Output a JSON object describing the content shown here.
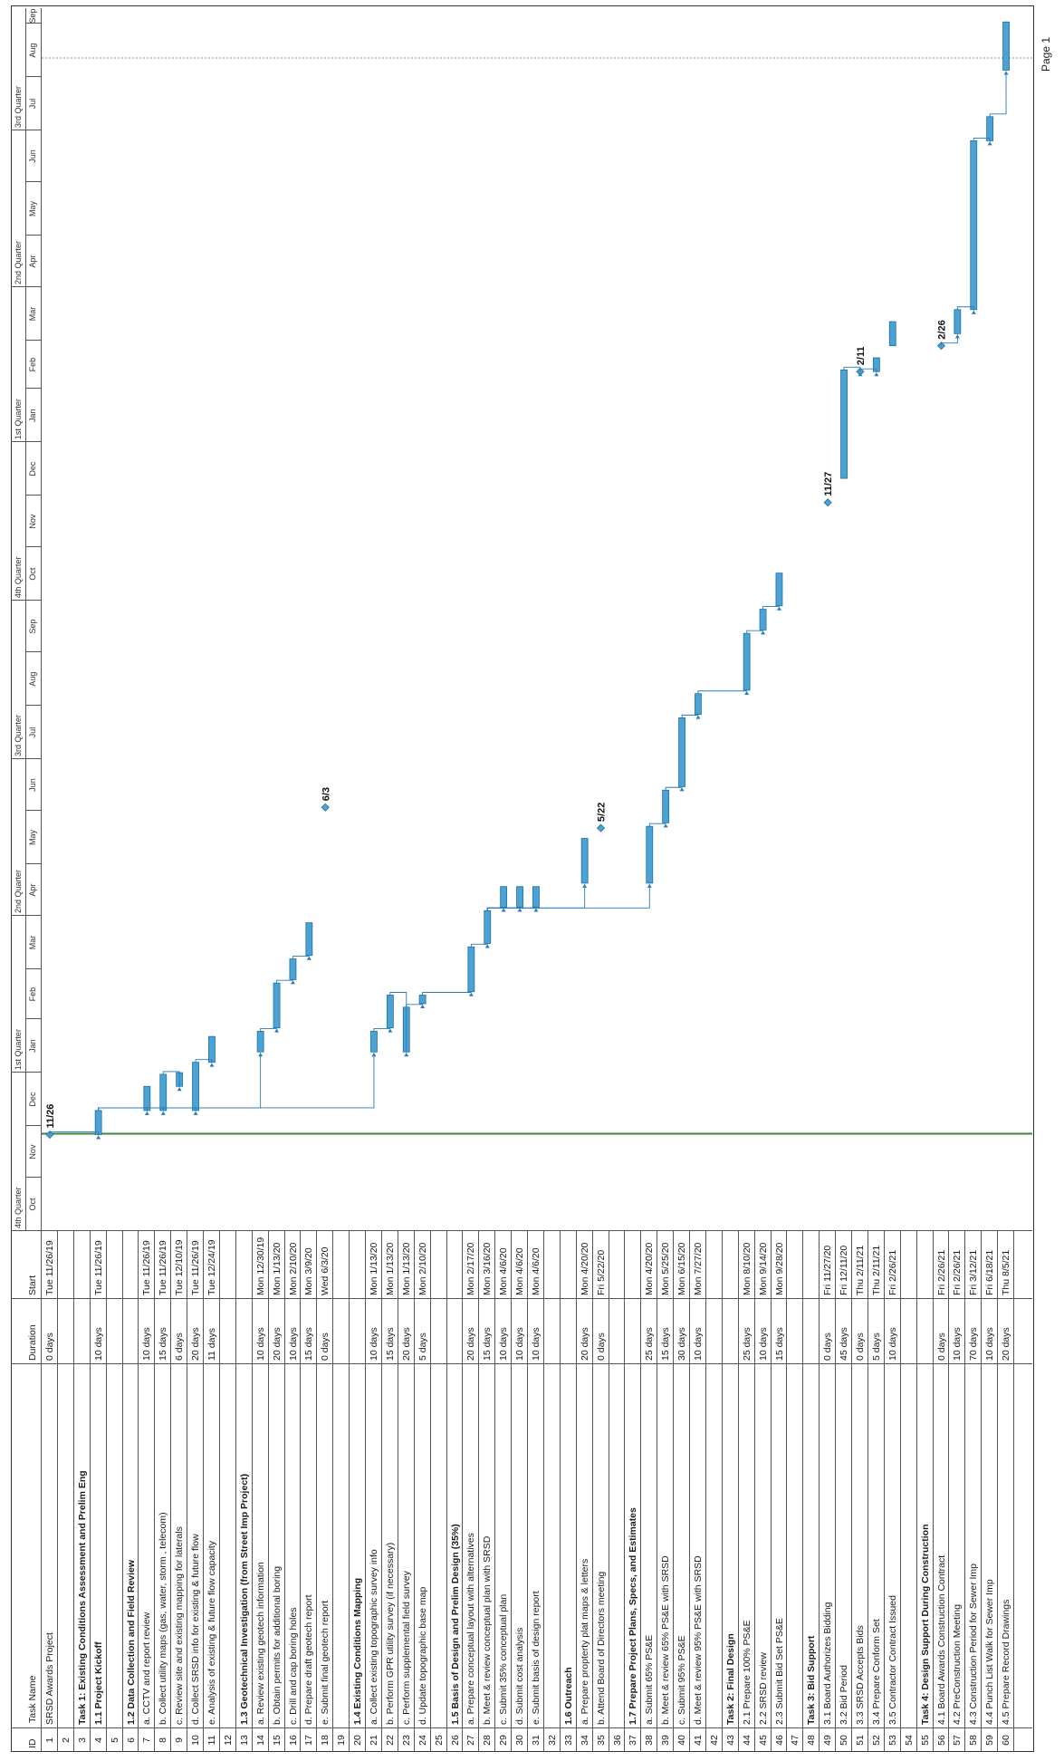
{
  "columns": {
    "id": "ID",
    "name": "Task Name",
    "duration": "Duration",
    "start": "Start"
  },
  "timescale": {
    "quarters": [
      {
        "label": "4th Quarter",
        "start": "2019-10-01"
      },
      {
        "label": "1st Quarter",
        "start": "2020-01-01"
      },
      {
        "label": "2nd Quarter",
        "start": "2020-04-01"
      },
      {
        "label": "3rd Quarter",
        "start": "2020-07-01"
      },
      {
        "label": "4th Quarter",
        "start": "2020-10-01"
      },
      {
        "label": "1st Quarter",
        "start": "2021-01-01"
      },
      {
        "label": "2nd Quarter",
        "start": "2021-04-01"
      },
      {
        "label": "3rd Quarter",
        "start": "2021-07-01"
      }
    ],
    "months": [
      {
        "label": "Oct",
        "start": "2019-10-01"
      },
      {
        "label": "Nov",
        "start": "2019-11-01"
      },
      {
        "label": "Dec",
        "start": "2019-12-01"
      },
      {
        "label": "Jan",
        "start": "2020-01-01"
      },
      {
        "label": "Feb",
        "start": "2020-02-01"
      },
      {
        "label": "Mar",
        "start": "2020-03-01"
      },
      {
        "label": "Apr",
        "start": "2020-04-01"
      },
      {
        "label": "May",
        "start": "2020-05-01"
      },
      {
        "label": "Jun",
        "start": "2020-06-01"
      },
      {
        "label": "Jul",
        "start": "2020-07-01"
      },
      {
        "label": "Aug",
        "start": "2020-08-01"
      },
      {
        "label": "Sep",
        "start": "2020-09-01"
      },
      {
        "label": "Oct",
        "start": "2020-10-01"
      },
      {
        "label": "Nov",
        "start": "2020-11-01"
      },
      {
        "label": "Dec",
        "start": "2020-12-01"
      },
      {
        "label": "Jan",
        "start": "2021-01-01"
      },
      {
        "label": "Feb",
        "start": "2021-02-01"
      },
      {
        "label": "Mar",
        "start": "2021-03-01"
      },
      {
        "label": "Apr",
        "start": "2021-04-01"
      },
      {
        "label": "May",
        "start": "2021-05-01"
      },
      {
        "label": "Jun",
        "start": "2021-06-01"
      },
      {
        "label": "Jul",
        "start": "2021-07-01"
      },
      {
        "label": "Aug",
        "start": "2021-08-01"
      },
      {
        "label": "Sep",
        "start": "2021-09-01"
      }
    ]
  },
  "colors": {
    "bar": "#4aa3d4",
    "bar_border": "#1f6fa0",
    "link": "#2a7ab8",
    "today_line": "#3a8a3a"
  },
  "page_label": "Page 1",
  "tasks": [
    {
      "id": "1",
      "name": "SRSD Awards Project",
      "duration": "0 days",
      "start": "Tue 11/26/19",
      "bold": false,
      "bar": {
        "type": "milestone",
        "date": "2019-11-26",
        "label": "11/26"
      }
    },
    {
      "id": "2",
      "name": "",
      "duration": "",
      "start": "",
      "bold": false,
      "bar": null
    },
    {
      "id": "3",
      "name": "Task 1:  Existing Conditions Assessment and Prelim Eng",
      "duration": "",
      "start": "",
      "bold": true,
      "bar": null
    },
    {
      "id": "4",
      "name": "1.1 Project Kickoff",
      "duration": "10 days",
      "start": "Tue 11/26/19",
      "bold": true,
      "bar": {
        "type": "task",
        "start": "2019-11-26",
        "end": "2019-12-09"
      }
    },
    {
      "id": "5",
      "name": "",
      "duration": "",
      "start": "",
      "bold": false,
      "bar": null
    },
    {
      "id": "6",
      "name": "1.2 Data Collection and Field Review",
      "duration": "",
      "start": "",
      "bold": true,
      "bar": null
    },
    {
      "id": "7",
      "name": "a. CCTV and report review",
      "duration": "10 days",
      "start": "Tue 11/26/19",
      "bold": false,
      "bar": {
        "type": "task",
        "start": "2019-12-10",
        "end": "2019-12-23"
      }
    },
    {
      "id": "8",
      "name": "b. Collect utility maps (gas, water, storm , telecom)",
      "duration": "15 days",
      "start": "Tue 11/26/19",
      "bold": false,
      "bar": {
        "type": "task",
        "start": "2019-12-10",
        "end": "2019-12-30"
      }
    },
    {
      "id": "9",
      "name": "c. Review site and existing mapping for laterals",
      "duration": "6 days",
      "start": "Tue 12/10/19",
      "bold": false,
      "bar": {
        "type": "task",
        "start": "2019-12-24",
        "end": "2019-12-31"
      }
    },
    {
      "id": "10",
      "name": "d. Collect SRSD info for existing & future flow",
      "duration": "20 days",
      "start": "Tue 11/26/19",
      "bold": false,
      "bar": {
        "type": "task",
        "start": "2019-12-10",
        "end": "2020-01-06"
      }
    },
    {
      "id": "11",
      "name": "e. Analysis of existing & future flow capacity",
      "duration": "11 days",
      "start": "Tue 12/24/19",
      "bold": false,
      "bar": {
        "type": "task",
        "start": "2020-01-07",
        "end": "2020-01-21"
      }
    },
    {
      "id": "12",
      "name": "",
      "duration": "",
      "start": "",
      "bold": false,
      "bar": null
    },
    {
      "id": "13",
      "name": "1.3 Geotechnical Investigation (from Street Imp Project)",
      "duration": "",
      "start": "",
      "bold": true,
      "bar": null
    },
    {
      "id": "14",
      "name": "a. Review existing geotech information",
      "duration": "10 days",
      "start": "Mon 12/30/19",
      "bold": false,
      "bar": {
        "type": "task",
        "start": "2020-01-13",
        "end": "2020-01-24"
      }
    },
    {
      "id": "15",
      "name": "b. Obtain permits for additional boring",
      "duration": "20 days",
      "start": "Mon 1/13/20",
      "bold": false,
      "bar": {
        "type": "task",
        "start": "2020-01-27",
        "end": "2020-02-21"
      }
    },
    {
      "id": "16",
      "name": "c. Drill and cap boring holes",
      "duration": "10 days",
      "start": "Mon 2/10/20",
      "bold": false,
      "bar": {
        "type": "task",
        "start": "2020-02-24",
        "end": "2020-03-06"
      }
    },
    {
      "id": "17",
      "name": "d. Prepare draft geotech report",
      "duration": "15 days",
      "start": "Mon 3/9/20",
      "bold": false,
      "bar": {
        "type": "task",
        "start": "2020-03-09",
        "end": "2020-03-27"
      }
    },
    {
      "id": "18",
      "name": "e. Submit final geotech report",
      "duration": "0 days",
      "start": "Wed 6/3/20",
      "bold": false,
      "bar": {
        "type": "milestone",
        "date": "2020-06-03",
        "label": "6/3"
      }
    },
    {
      "id": "19",
      "name": "",
      "duration": "",
      "start": "",
      "bold": false,
      "bar": null
    },
    {
      "id": "20",
      "name": "1.4 Existing Conditions Mapping",
      "duration": "",
      "start": "",
      "bold": true,
      "bar": null
    },
    {
      "id": "21",
      "name": "a. Collect existing topographic survey info",
      "duration": "10 days",
      "start": "Mon 1/13/20",
      "bold": false,
      "bar": {
        "type": "task",
        "start": "2020-01-13",
        "end": "2020-01-24"
      }
    },
    {
      "id": "22",
      "name": "b. Perform GPR utility survey (if necessary)",
      "duration": "15 days",
      "start": "Mon 1/13/20",
      "bold": false,
      "bar": {
        "type": "task",
        "start": "2020-01-27",
        "end": "2020-02-14"
      }
    },
    {
      "id": "23",
      "name": "c. Perform supplemental field survey",
      "duration": "20 days",
      "start": "Mon 1/13/20",
      "bold": false,
      "bar": {
        "type": "task",
        "start": "2020-01-13",
        "end": "2020-02-07"
      }
    },
    {
      "id": "24",
      "name": "d. Update topographic base map",
      "duration": "5 days",
      "start": "Mon 2/10/20",
      "bold": false,
      "bar": {
        "type": "task",
        "start": "2020-02-10",
        "end": "2020-02-14"
      }
    },
    {
      "id": "25",
      "name": "",
      "duration": "",
      "start": "",
      "bold": false,
      "bar": null
    },
    {
      "id": "26",
      "name": "1.5 Basis of Design and Prelim Design (35%)",
      "duration": "",
      "start": "",
      "bold": true,
      "bar": null
    },
    {
      "id": "27",
      "name": "a. Prepare conceptual layout with alternatives",
      "duration": "20 days",
      "start": "Mon 2/17/20",
      "bold": false,
      "bar": {
        "type": "task",
        "start": "2020-02-17",
        "end": "2020-03-13"
      }
    },
    {
      "id": "28",
      "name": "b. Meet & review conceptual plan with SRSD",
      "duration": "15 days",
      "start": "Mon 3/16/20",
      "bold": false,
      "bar": {
        "type": "task",
        "start": "2020-03-16",
        "end": "2020-04-03"
      }
    },
    {
      "id": "29",
      "name": "c. Submit 35% conceptual plan",
      "duration": "10 days",
      "start": "Mon 4/6/20",
      "bold": false,
      "bar": {
        "type": "task",
        "start": "2020-04-06",
        "end": "2020-04-17"
      }
    },
    {
      "id": "30",
      "name": "d. Submit cost analysis",
      "duration": "10 days",
      "start": "Mon 4/6/20",
      "bold": false,
      "bar": {
        "type": "task",
        "start": "2020-04-06",
        "end": "2020-04-17"
      }
    },
    {
      "id": "31",
      "name": "e. Submit basis of design report",
      "duration": "10 days",
      "start": "Mon 4/6/20",
      "bold": false,
      "bar": {
        "type": "task",
        "start": "2020-04-06",
        "end": "2020-04-17"
      }
    },
    {
      "id": "32",
      "name": "",
      "duration": "",
      "start": "",
      "bold": false,
      "bar": null
    },
    {
      "id": "33",
      "name": "1.6 Outreach",
      "duration": "",
      "start": "",
      "bold": true,
      "bar": null
    },
    {
      "id": "34",
      "name": "a. Prepare propterty plat maps & letters",
      "duration": "20 days",
      "start": "Mon 4/20/20",
      "bold": false,
      "bar": {
        "type": "task",
        "start": "2020-04-20",
        "end": "2020-05-15"
      }
    },
    {
      "id": "35",
      "name": "b. Attend Board of Directors meeting",
      "duration": "0 days",
      "start": "Fri 5/22/20",
      "bold": false,
      "bar": {
        "type": "milestone",
        "date": "2020-05-22",
        "label": "5/22"
      }
    },
    {
      "id": "36",
      "name": "",
      "duration": "",
      "start": "",
      "bold": false,
      "bar": null
    },
    {
      "id": "37",
      "name": "1.7 Prepare Project Plans, Specs, and Estimates",
      "duration": "",
      "start": "",
      "bold": true,
      "bar": null
    },
    {
      "id": "38",
      "name": "a. Submit 65% PS&E",
      "duration": "25 days",
      "start": "Mon 4/20/20",
      "bold": false,
      "bar": {
        "type": "task",
        "start": "2020-04-20",
        "end": "2020-05-22"
      }
    },
    {
      "id": "39",
      "name": "b. Meet & review 65% PS&E with SRSD",
      "duration": "15 days",
      "start": "Mon 5/25/20",
      "bold": false,
      "bar": {
        "type": "task",
        "start": "2020-05-25",
        "end": "2020-06-12"
      }
    },
    {
      "id": "40",
      "name": "c. Submit 95% PS&E",
      "duration": "30 days",
      "start": "Mon 6/15/20",
      "bold": false,
      "bar": {
        "type": "task",
        "start": "2020-06-15",
        "end": "2020-07-24"
      }
    },
    {
      "id": "41",
      "name": "d. Meet & review 95% PS&E with SRSD",
      "duration": "10 days",
      "start": "Mon 7/27/20",
      "bold": false,
      "bar": {
        "type": "task",
        "start": "2020-07-27",
        "end": "2020-08-07"
      }
    },
    {
      "id": "42",
      "name": "",
      "duration": "",
      "start": "",
      "bold": false,
      "bar": null
    },
    {
      "id": "43",
      "name": "Task 2: Final Design",
      "duration": "",
      "start": "",
      "bold": true,
      "bar": null
    },
    {
      "id": "44",
      "name": "2.1 Prepare 100% PS&E",
      "duration": "25 days",
      "start": "Mon 8/10/20",
      "bold": false,
      "bar": {
        "type": "task",
        "start": "2020-08-10",
        "end": "2020-09-11"
      }
    },
    {
      "id": "45",
      "name": "2.2 SRSD review",
      "duration": "10 days",
      "start": "Mon 9/14/20",
      "bold": false,
      "bar": {
        "type": "task",
        "start": "2020-09-14",
        "end": "2020-09-25"
      }
    },
    {
      "id": "46",
      "name": "2.3 Submit Bid Set PS&E",
      "duration": "15 days",
      "start": "Mon 9/28/20",
      "bold": false,
      "bar": {
        "type": "task",
        "start": "2020-09-28",
        "end": "2020-10-16"
      }
    },
    {
      "id": "47",
      "name": "",
      "duration": "",
      "start": "",
      "bold": false,
      "bar": null
    },
    {
      "id": "48",
      "name": "Task 3: Bid Support",
      "duration": "",
      "start": "",
      "bold": true,
      "bar": null
    },
    {
      "id": "49",
      "name": "3.1 Board Authorizes Bidding",
      "duration": "0 days",
      "start": "Fri 11/27/20",
      "bold": false,
      "bar": {
        "type": "milestone",
        "date": "2020-11-27",
        "label": "11/27"
      }
    },
    {
      "id": "50",
      "name": "3.2 Bid Period",
      "duration": "45 days",
      "start": "Fri 12/11/20",
      "bold": false,
      "bar": {
        "type": "task",
        "start": "2020-12-11",
        "end": "2021-02-11"
      }
    },
    {
      "id": "51",
      "name": "3.3 SRSD Accepts Bids",
      "duration": "0 days",
      "start": "Thu 2/11/21",
      "bold": false,
      "bar": {
        "type": "milestone",
        "date": "2021-02-11",
        "label": "2/11"
      }
    },
    {
      "id": "52",
      "name": "3.4 Prepare Conform Set",
      "duration": "5 days",
      "start": "Thu 2/11/21",
      "bold": false,
      "bar": {
        "type": "task",
        "start": "2021-02-11",
        "end": "2021-02-18"
      }
    },
    {
      "id": "53",
      "name": "3.5 Contractor Contract Issued",
      "duration": "10 days",
      "start": "Fri 2/26/21",
      "bold": false,
      "bar": {
        "type": "task",
        "start": "2021-02-26",
        "end": "2021-03-11"
      }
    },
    {
      "id": "54",
      "name": "",
      "duration": "",
      "start": "",
      "bold": false,
      "bar": null
    },
    {
      "id": "55",
      "name": "Task 4:  Design Support During Construction",
      "duration": "",
      "start": "",
      "bold": true,
      "bar": null
    },
    {
      "id": "56",
      "name": "4.1 Board Awards Construction Contract",
      "duration": "0 days",
      "start": "Fri 2/26/21",
      "bold": false,
      "bar": {
        "type": "milestone",
        "date": "2021-02-26",
        "label": "2/26"
      }
    },
    {
      "id": "57",
      "name": "4.2 PreConstruction Meeting",
      "duration": "10 days",
      "start": "Fri 2/26/21",
      "bold": false,
      "bar": {
        "type": "task",
        "start": "2021-03-05",
        "end": "2021-03-18"
      }
    },
    {
      "id": "58",
      "name": "4.3 Construction Period for Sewer Imp",
      "duration": "70 days",
      "start": "Fri 3/12/21",
      "bold": false,
      "bar": {
        "type": "task",
        "start": "2021-03-19",
        "end": "2021-06-24"
      }
    },
    {
      "id": "59",
      "name": "4.4 Punch List Walk for Sewer Imp",
      "duration": "10 days",
      "start": "Fri 6/18/21",
      "bold": false,
      "bar": {
        "type": "task",
        "start": "2021-06-25",
        "end": "2021-07-08"
      }
    },
    {
      "id": "60",
      "name": "4.5 Prepare Record Drawings",
      "duration": "20 days",
      "start": "Thu 8/5/21",
      "bold": false,
      "bar": {
        "type": "task",
        "start": "2021-08-05",
        "end": "2021-09-01"
      }
    }
  ]
}
